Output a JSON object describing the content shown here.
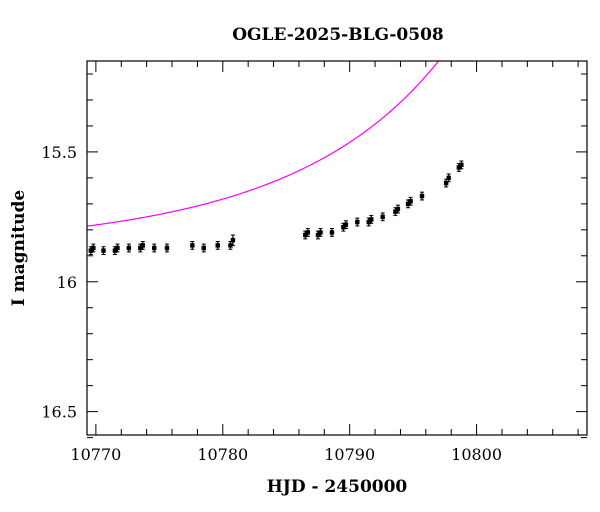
{
  "chart_data": {
    "type": "scatter",
    "title": "OGLE-2025-BLG-0508",
    "xlabel": "HJD - 2450000",
    "ylabel": "I magnitude",
    "xlim": [
      10769.3,
      10808.7
    ],
    "ylim": [
      16.59,
      15.15
    ],
    "y_inverted": true,
    "x_ticks": [
      10770,
      10780,
      10790,
      10800
    ],
    "y_ticks": [
      15.5,
      16,
      16.5
    ],
    "x_tick_labels": [
      "10770",
      "10780",
      "10790",
      "10800"
    ],
    "y_tick_labels": [
      "15.5",
      "16",
      "16.5"
    ],
    "grid": false,
    "colors": {
      "data": "#000000",
      "model": "#ff00ff",
      "axes": "#000000"
    },
    "series": [
      {
        "kind": "observations",
        "x": [
          10769.6,
          10769.8,
          10770.6,
          10771.5,
          10771.7,
          10772.6,
          10773.5,
          10773.7,
          10774.6,
          10775.6,
          10777.6,
          10778.5,
          10779.6,
          10780.6,
          10780.8,
          10786.5,
          10786.7,
          10787.5,
          10787.7,
          10788.6,
          10789.5,
          10789.7,
          10790.6,
          10791.5,
          10791.7,
          10792.6,
          10793.6,
          10793.8,
          10794.6,
          10794.8,
          10795.7,
          10797.6,
          10797.8,
          10798.6,
          10798.8
        ],
        "y": [
          15.88,
          15.87,
          15.88,
          15.88,
          15.87,
          15.87,
          15.87,
          15.86,
          15.87,
          15.87,
          15.86,
          15.87,
          15.86,
          15.86,
          15.84,
          15.82,
          15.81,
          15.82,
          15.81,
          15.81,
          15.79,
          15.78,
          15.77,
          15.77,
          15.76,
          15.75,
          15.73,
          15.72,
          15.7,
          15.69,
          15.67,
          15.62,
          15.6,
          15.56,
          15.55
        ],
        "yerr": [
          0.015,
          0.015,
          0.015,
          0.015,
          0.015,
          0.015,
          0.015,
          0.015,
          0.015,
          0.015,
          0.015,
          0.015,
          0.015,
          0.015,
          0.02,
          0.015,
          0.015,
          0.015,
          0.015,
          0.015,
          0.015,
          0.015,
          0.015,
          0.015,
          0.015,
          0.015,
          0.015,
          0.015,
          0.015,
          0.015,
          0.015,
          0.015,
          0.015,
          0.015,
          0.015
        ]
      },
      {
        "kind": "model",
        "model": "point-lens",
        "t0": 10811,
        "u0": 0.07,
        "tE": 25,
        "I_base": 15.89
      }
    ]
  }
}
